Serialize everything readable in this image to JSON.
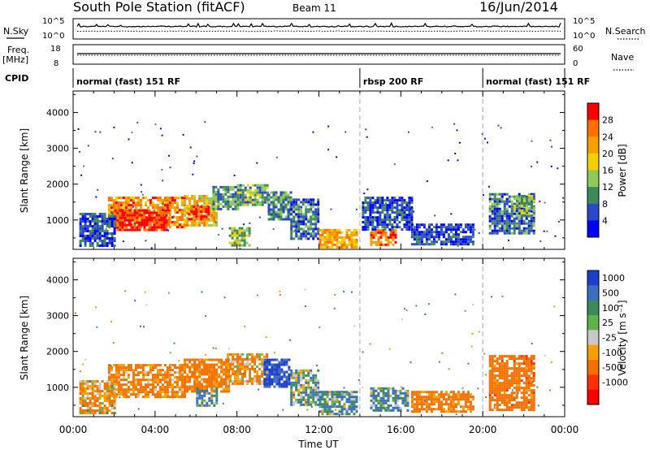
{
  "header": {
    "station": "South Pole Station (fitACF)",
    "beam": "Beam 11",
    "date": "16/Jun/2014"
  },
  "top_panels": {
    "left_label_1": "N.Sky",
    "left_ticks_1": [
      "10^5",
      "10^0"
    ],
    "right_label_1": "N.Search",
    "right_ticks_1": [
      "10^5",
      "10^0"
    ],
    "left_label_2": "Freq.",
    "left_unit_2": "[MHz]",
    "left_ticks_2": [
      "18",
      "8"
    ],
    "right_label_2": "Nave",
    "right_ticks_2": [
      "60",
      "0"
    ],
    "cpid_label": "CPID",
    "cpid_segments": [
      {
        "label": "normal (fast) 151 RF",
        "start_h": 0,
        "end_h": 14
      },
      {
        "label": "rbsp 200 RF",
        "start_h": 14,
        "end_h": 20
      },
      {
        "label": "normal (fast) 151 RF",
        "start_h": 20,
        "end_h": 24
      }
    ]
  },
  "chart_data": [
    {
      "type": "heatmap",
      "name": "power",
      "ylabel": "Slant Range [km]",
      "xlabel": "",
      "xlim": [
        0,
        24
      ],
      "ylim": [
        180,
        4600
      ],
      "ytick_labels": [
        "1000",
        "2000",
        "3000",
        "4000"
      ],
      "colorbar": {
        "label": "Power [dB]",
        "tick_labels": [
          "4",
          "8",
          "12",
          "16",
          "20",
          "24",
          "28"
        ],
        "colors": [
          "#0000ff",
          "#2a48c8",
          "#3c8a5a",
          "#8fc95a",
          "#f5d000",
          "#f5a000",
          "#ff7000",
          "#ff0000"
        ]
      },
      "regions": [
        {
          "t0": 1.7,
          "t1": 5.5,
          "r0": 800,
          "r1": 1650,
          "level": 24
        },
        {
          "t0": 2.0,
          "t1": 4.7,
          "r0": 700,
          "r1": 1300,
          "level": 30
        },
        {
          "t0": 5.4,
          "t1": 7.0,
          "r0": 850,
          "r1": 1700,
          "level": 20
        },
        {
          "t0": 5.6,
          "t1": 6.6,
          "r0": 1000,
          "r1": 1400,
          "level": 28
        },
        {
          "t0": 6.8,
          "t1": 8.0,
          "r0": 1300,
          "r1": 1950,
          "level": 10
        },
        {
          "t0": 8.0,
          "t1": 9.5,
          "r0": 1400,
          "r1": 2000,
          "level": 12
        },
        {
          "t0": 9.5,
          "t1": 10.6,
          "r0": 1000,
          "r1": 1800,
          "level": 10
        },
        {
          "t0": 7.6,
          "t1": 8.6,
          "r0": 300,
          "r1": 800,
          "level": 14
        },
        {
          "t0": 10.6,
          "t1": 12.0,
          "r0": 450,
          "r1": 1600,
          "level": 8
        },
        {
          "t0": 12.0,
          "t1": 13.8,
          "r0": 250,
          "r1": 750,
          "level": 22
        },
        {
          "t0": 14.5,
          "t1": 15.8,
          "r0": 300,
          "r1": 750,
          "level": 26
        },
        {
          "t0": 14.1,
          "t1": 16.5,
          "r0": 700,
          "r1": 1650,
          "level": 6
        },
        {
          "t0": 16.5,
          "t1": 19.5,
          "r0": 300,
          "r1": 900,
          "level": 5
        },
        {
          "t0": 20.3,
          "t1": 22.5,
          "r0": 600,
          "r1": 1750,
          "level": 8
        },
        {
          "t0": 21.5,
          "t1": 22.5,
          "r0": 1100,
          "r1": 1700,
          "level": 14
        },
        {
          "t0": 0.3,
          "t1": 2.0,
          "r0": 250,
          "r1": 1200,
          "level": 6
        }
      ]
    },
    {
      "type": "heatmap",
      "name": "velocity",
      "ylabel": "Slant Range [km]",
      "xlabel": "Time UT",
      "xlim": [
        0,
        24
      ],
      "ylim": [
        180,
        4600
      ],
      "xtick_labels": [
        "00:00",
        "04:00",
        "08:00",
        "12:00",
        "16:00",
        "20:00",
        "00:00"
      ],
      "ytick_labels": [
        "1000",
        "2000",
        "3000",
        "4000"
      ],
      "colorbar": {
        "label": "Velocity [m s⁻¹]",
        "tick_labels": [
          "1000",
          "500",
          "100",
          "25",
          "-25",
          "-100",
          "-500",
          "-1000"
        ],
        "colors": [
          "#1e3fc8",
          "#3a6ec0",
          "#3c8a5a",
          "#5fb34a",
          "#c8c8c8",
          "#f5a000",
          "#f57000",
          "#ff3000",
          "#ff0000"
        ]
      },
      "regions": [
        {
          "t0": 1.7,
          "t1": 5.5,
          "r0": 700,
          "r1": 1650,
          "level": -150
        },
        {
          "t0": 5.4,
          "t1": 7.6,
          "r0": 850,
          "r1": 1800,
          "level": -200
        },
        {
          "t0": 7.5,
          "t1": 9.5,
          "r0": 1100,
          "r1": 1950,
          "level": -100
        },
        {
          "t0": 9.3,
          "t1": 10.6,
          "r0": 1000,
          "r1": 1800,
          "level": 600
        },
        {
          "t0": 6.0,
          "t1": 7.0,
          "r0": 500,
          "r1": 1000,
          "level": 80
        },
        {
          "t0": 10.6,
          "t1": 12.0,
          "r0": 500,
          "r1": 1500,
          "level": 50
        },
        {
          "t0": 12.0,
          "t1": 13.8,
          "r0": 250,
          "r1": 900,
          "level": 80
        },
        {
          "t0": 14.5,
          "t1": 16.3,
          "r0": 350,
          "r1": 1000,
          "level": 90
        },
        {
          "t0": 16.5,
          "t1": 19.5,
          "r0": 300,
          "r1": 900,
          "level": -200
        },
        {
          "t0": 20.3,
          "t1": 22.5,
          "r0": 400,
          "r1": 1900,
          "level": -300
        },
        {
          "t0": 0.3,
          "t1": 2.0,
          "r0": 250,
          "r1": 1200,
          "level": -80
        }
      ]
    }
  ]
}
